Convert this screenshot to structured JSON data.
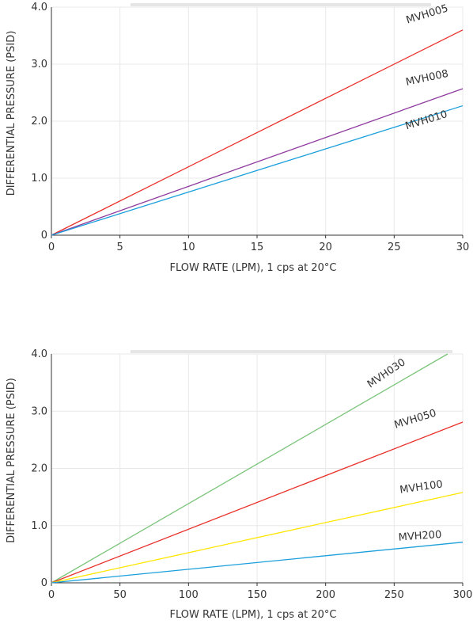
{
  "chart_data": [
    {
      "type": "line",
      "xlabel": "FLOW RATE (LPM), 1 cps at 20°C",
      "ylabel": "DIFFERENTIAL PRESSURE (PSID)",
      "xlim": [
        0,
        30
      ],
      "ylim": [
        0,
        4.0
      ],
      "x_ticks": [
        0,
        5,
        10,
        15,
        20,
        25,
        30
      ],
      "x_tick_labels": [
        "0",
        "5",
        "10",
        "15",
        "20",
        "25",
        "30"
      ],
      "y_ticks": [
        0,
        1,
        2,
        3,
        4
      ],
      "y_tick_labels": [
        "0",
        "1.0",
        "2.0",
        "3.0",
        "4.0"
      ],
      "grid": true,
      "series": [
        {
          "name": "MVH005",
          "color": "#e8312a",
          "x": [
            0,
            30
          ],
          "y": [
            0,
            3.6
          ]
        },
        {
          "name": "MVH008",
          "color": "#8e3a9e",
          "x": [
            0,
            30
          ],
          "y": [
            0,
            2.57
          ]
        },
        {
          "name": "MVH010",
          "color": "#1b9fdb",
          "x": [
            0,
            30
          ],
          "y": [
            0,
            2.27
          ]
        }
      ]
    },
    {
      "type": "line",
      "xlabel": "FLOW RATE (LPM), 1 cps at 20°C",
      "ylabel": "DIFFERENTIAL PRESSURE (PSID)",
      "xlim": [
        0,
        300
      ],
      "ylim": [
        0,
        4.0
      ],
      "x_ticks": [
        0,
        50,
        100,
        150,
        200,
        250,
        300
      ],
      "x_tick_labels": [
        "0",
        "50",
        "100",
        "150",
        "200",
        "250",
        "300"
      ],
      "y_ticks": [
        0,
        1,
        2,
        3,
        4
      ],
      "y_tick_labels": [
        "0",
        "1.0",
        "2.0",
        "3.0",
        "4.0"
      ],
      "grid": true,
      "series": [
        {
          "name": "MVH030",
          "color": "#7bc47a",
          "x": [
            0,
            289
          ],
          "y": [
            0,
            4.0
          ]
        },
        {
          "name": "MVH050",
          "color": "#e8312a",
          "x": [
            0,
            300
          ],
          "y": [
            0,
            2.81
          ]
        },
        {
          "name": "MVH100",
          "color": "#ffe600",
          "x": [
            0,
            300
          ],
          "y": [
            0,
            1.58
          ]
        },
        {
          "name": "MVH200",
          "color": "#1b9fdb",
          "x": [
            0,
            300
          ],
          "y": [
            0,
            0.71
          ]
        }
      ]
    }
  ]
}
